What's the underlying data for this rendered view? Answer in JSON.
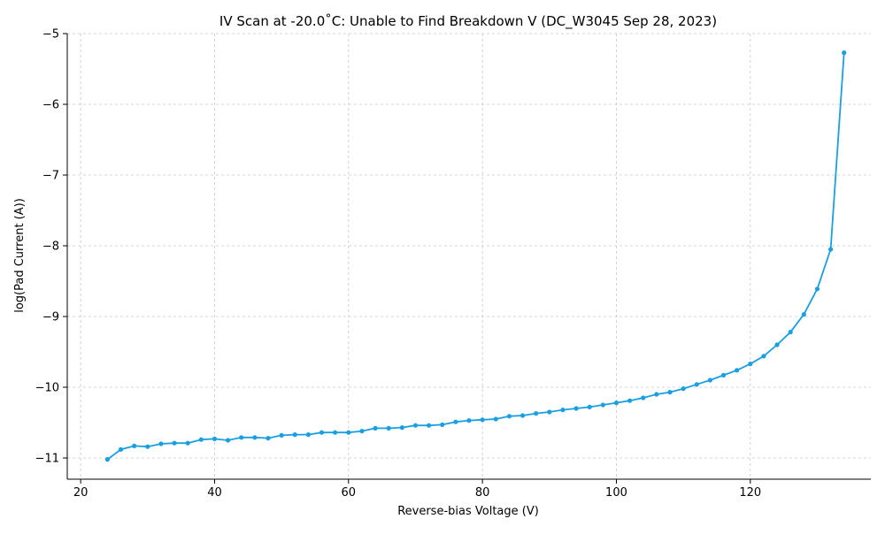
{
  "chart_data": {
    "type": "line",
    "title": "IV Scan at -20.0$^\\circ$C: Unable to Find Breakdown V (DC_W3045 Sep 28, 2023)",
    "title_display": "IV Scan at -20.0˚C: Unable to Find Breakdown V (DC_W3045 Sep 28, 2023)",
    "xlabel": "Reverse-bias Voltage (V)",
    "ylabel": "log(Pad Current (A))",
    "xlim": [
      18,
      138
    ],
    "ylim": [
      -11.3,
      -5
    ],
    "xticks": [
      20,
      40,
      60,
      80,
      100,
      120
    ],
    "yticks": [
      -11,
      -10,
      -9,
      -8,
      -7,
      -6,
      -5
    ],
    "xtick_labels": [
      "20",
      "40",
      "60",
      "80",
      "100",
      "120"
    ],
    "ytick_labels": [
      "−11",
      "−10",
      "−9",
      "−8",
      "−7",
      "−6",
      "−5"
    ],
    "grid": true,
    "line_color": "#1a9fe0",
    "series": [
      {
        "x": [
          24,
          26,
          28,
          30,
          32,
          34,
          36,
          38,
          40,
          42,
          44,
          46,
          48,
          50,
          52,
          54,
          56,
          58,
          60,
          62,
          64,
          66,
          68,
          70,
          72,
          74,
          76,
          78,
          80,
          82,
          84,
          86,
          88,
          90,
          92,
          94,
          96,
          98,
          100,
          102,
          104,
          106,
          108,
          110,
          112,
          114,
          116,
          118,
          120,
          122,
          124,
          126,
          128,
          130,
          132,
          134
        ],
        "y": [
          -11.02,
          -10.88,
          -10.83,
          -10.84,
          -10.8,
          -10.79,
          -10.79,
          -10.74,
          -10.73,
          -10.75,
          -10.71,
          -10.71,
          -10.72,
          -10.68,
          -10.67,
          -10.67,
          -10.64,
          -10.64,
          -10.64,
          -10.62,
          -10.58,
          -10.58,
          -10.57,
          -10.54,
          -10.54,
          -10.53,
          -10.49,
          -10.47,
          -10.46,
          -10.45,
          -10.41,
          -10.4,
          -10.37,
          -10.35,
          -10.32,
          -10.3,
          -10.28,
          -10.25,
          -10.22,
          -10.19,
          -10.15,
          -10.1,
          -10.07,
          -10.02,
          -9.96,
          -9.9,
          -9.83,
          -9.76,
          -9.67,
          -9.56,
          -9.4,
          -9.22,
          -8.97,
          -8.61,
          -8.05,
          -5.27
        ]
      }
    ]
  }
}
